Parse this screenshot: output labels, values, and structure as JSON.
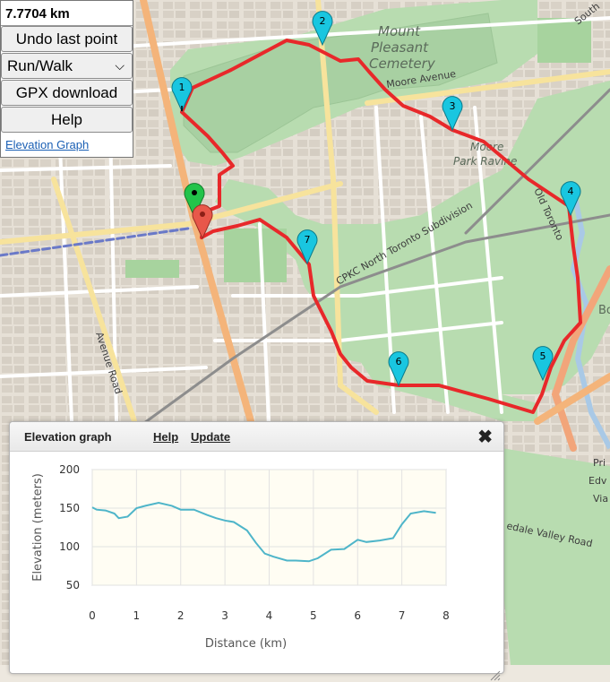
{
  "panel": {
    "distance": "7.7704 km",
    "undo_label": "Undo last point",
    "mode_value": "Run/Walk",
    "gpx_label": "GPX download",
    "help_label": "Help",
    "elevation_link": "Elevation Graph"
  },
  "map": {
    "labels": {
      "mount": "Mount",
      "pleasant": "Pleasant",
      "cemetery": "Cemetery",
      "moore_avenue": "Moore Avenue",
      "moore": "Moore",
      "park_ravine": "Park Ravine",
      "subdivision": "CPKC North Toronto Subdivision",
      "old_toronto": "Old Toronto",
      "avenue_road": "Avenue Road",
      "valley_road": "edale Valley Road",
      "south": "South",
      "bo": "Bo",
      "pri": "Pri",
      "edv": "Edv",
      "via": "Via"
    },
    "markers": [
      {
        "label": "1"
      },
      {
        "label": "2"
      },
      {
        "label": "3"
      },
      {
        "label": "4"
      },
      {
        "label": "5"
      },
      {
        "label": "6"
      },
      {
        "label": "7"
      }
    ],
    "colors": {
      "route": "#e8282a",
      "marker": "#19c6e0",
      "start": "#22c34a",
      "end": "#e8574a"
    }
  },
  "dialog": {
    "title": "Elevation graph",
    "help_link": "Help",
    "update_link": "Update",
    "close_glyph": "✖"
  },
  "chart_data": {
    "type": "line",
    "xlabel": "Distance (km)",
    "ylabel": "Elevation (meters)",
    "xlim": [
      0,
      8
    ],
    "ylim": [
      50,
      200
    ],
    "xticks": [
      "0",
      "1",
      "2",
      "3",
      "4",
      "5",
      "6",
      "7",
      "8"
    ],
    "yticks": [
      "200",
      "150",
      "100",
      "50"
    ],
    "grid": true,
    "color": "#4eb5c9",
    "x": [
      0,
      0.1,
      0.3,
      0.5,
      0.6,
      0.8,
      1.0,
      1.2,
      1.5,
      1.8,
      2.0,
      2.3,
      2.6,
      2.8,
      3.0,
      3.2,
      3.5,
      3.7,
      3.9,
      4.1,
      4.4,
      4.6,
      4.9,
      5.1,
      5.4,
      5.7,
      6.0,
      6.2,
      6.5,
      6.8,
      7.0,
      7.2,
      7.5,
      7.77
    ],
    "y": [
      151,
      148,
      147,
      143,
      137,
      139,
      150,
      153,
      157,
      153,
      148,
      148,
      141,
      137,
      134,
      132,
      121,
      105,
      91,
      87,
      82,
      82,
      81,
      85,
      96,
      97,
      109,
      106,
      108,
      111,
      129,
      143,
      146,
      144
    ]
  }
}
